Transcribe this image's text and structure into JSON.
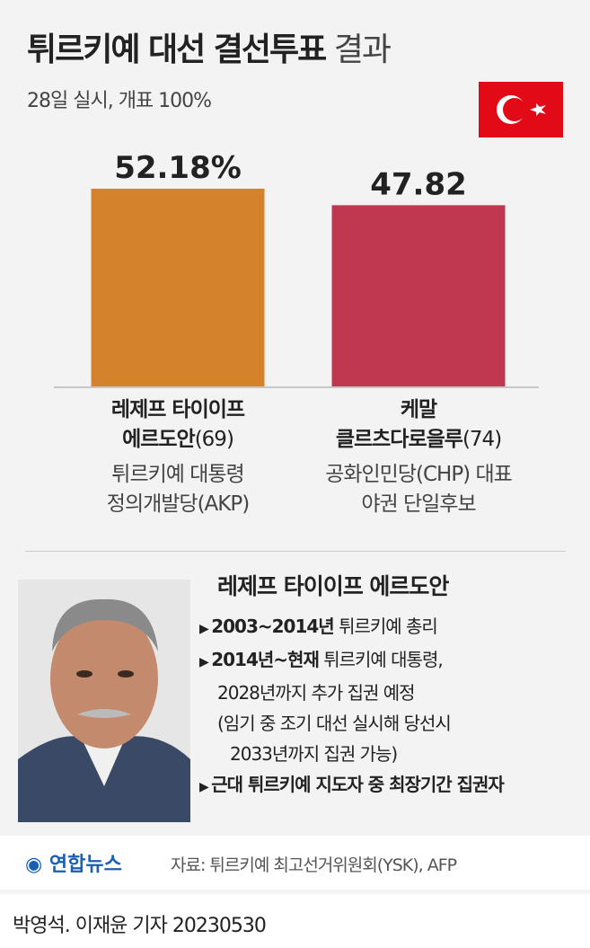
{
  "header": {
    "title_bold": "튀르키예 대선 결선투표",
    "title_light": "결과",
    "subtitle": "28일 실시, 개표 100%"
  },
  "chart_data": {
    "type": "bar",
    "values": [
      52.18,
      47.82
    ],
    "value_labels": [
      "52.18%",
      "47.82"
    ],
    "colors": [
      "#d4832c",
      "#c0384f"
    ]
  },
  "candidates": [
    {
      "name_lines": [
        "레제프 타이이프",
        "에르도안"
      ],
      "age": "(69)",
      "descriptions": [
        "튀르키예 대통령",
        "정의개발당(AKP)"
      ]
    },
    {
      "name_lines": [
        "케말",
        "클르츠다로을루"
      ],
      "age": "(74)",
      "descriptions": [
        "공화인민당(CHP) 대표",
        "야권 단일후보"
      ]
    }
  ],
  "profile": {
    "name": "레제프 타이이프 에르도안",
    "items": [
      {
        "bold": "2003~2014년",
        "text": "튀르키예 총리",
        "lines": []
      },
      {
        "bold": "2014년~현재",
        "text": "튀르키예 대통령,",
        "lines": [
          "2028년까지 추가 집권 예정",
          "(임기 중 조기 대선 실시해 당선시",
          "2033년까지 집권 가능)"
        ]
      },
      {
        "bold": "근대 튀르키예 지도자 중 최장기간 집권자",
        "text": "",
        "lines": []
      }
    ]
  },
  "footer": {
    "logo": "연합뉴스",
    "source": "자료: 튀르키예 최고선거위원회(YSK), AFP",
    "credit": "박영석. 이재윤 기자",
    "date": "20230530"
  }
}
